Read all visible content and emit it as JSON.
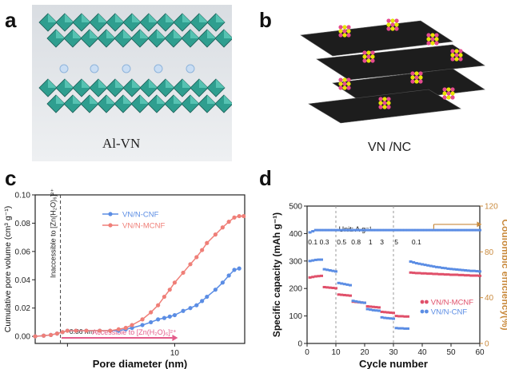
{
  "panels": {
    "a": {
      "letter": "a",
      "caption": "Al-VN"
    },
    "b": {
      "letter": "b",
      "caption": "VN /NC"
    },
    "c": {
      "letter": "c"
    },
    "d": {
      "letter": "d"
    }
  },
  "colors": {
    "mcnf": "#ef7f78",
    "cnf": "#5b8de4",
    "mcnf_d": "#e0506a",
    "cnf_d": "#5b8de4",
    "ce_axis": "#c98a3d",
    "arrow_pink": "#e35b8a"
  },
  "chart_data": [
    {
      "type": "line",
      "panel": "c",
      "xlabel": "Pore diameter (nm)",
      "ylabel": "Cumulative pore volume (cm³ g⁻¹)",
      "xscale": "log",
      "xlim": [
        0.5,
        45
      ],
      "ylim": [
        -0.005,
        0.1
      ],
      "yticks": [
        "0.00",
        "0.02",
        "0.04",
        "0.06",
        "0.08",
        "0.10"
      ],
      "xtick_label": "10",
      "xtick_marker": "1",
      "annotations": {
        "inaccessible": "Inaccessible to [Zn(H₂O)₆]²⁺",
        "size": "~ 0.86 nm",
        "accessible": "Accessible to [Zn(H₂O)₆]²⁺"
      },
      "series": [
        {
          "name": "VN/N-CNF",
          "x": [
            0.5,
            0.6,
            0.7,
            0.8,
            0.9,
            1.0,
            1.2,
            1.5,
            2,
            2.5,
            3,
            3.5,
            4,
            5,
            6,
            7,
            8,
            9,
            10,
            12,
            14,
            16,
            18,
            20,
            24,
            28,
            32,
            36,
            40
          ],
          "y": [
            0.0,
            0.0005,
            0.001,
            0.002,
            0.003,
            0.004,
            0.004,
            0.004,
            0.004,
            0.004,
            0.004,
            0.005,
            0.006,
            0.008,
            0.01,
            0.012,
            0.013,
            0.014,
            0.015,
            0.018,
            0.02,
            0.022,
            0.025,
            0.028,
            0.033,
            0.038,
            0.043,
            0.047,
            0.048
          ]
        },
        {
          "name": "VN/N-MCNF",
          "x": [
            0.5,
            0.6,
            0.7,
            0.8,
            0.9,
            1.0,
            1.2,
            1.5,
            2,
            2.5,
            3,
            3.5,
            4,
            5,
            6,
            7,
            8,
            9,
            10,
            12,
            14,
            16,
            18,
            20,
            24,
            28,
            32,
            36,
            40,
            44
          ],
          "y": [
            0.0,
            0.0005,
            0.001,
            0.002,
            0.003,
            0.004,
            0.004,
            0.004,
            0.004,
            0.004,
            0.005,
            0.006,
            0.008,
            0.012,
            0.017,
            0.022,
            0.028,
            0.033,
            0.038,
            0.045,
            0.051,
            0.056,
            0.061,
            0.066,
            0.072,
            0.077,
            0.081,
            0.084,
            0.085,
            0.085
          ]
        }
      ]
    },
    {
      "type": "scatter",
      "panel": "d",
      "xlabel": "Cycle number",
      "ylabel": "Specific capacity (mAh g⁻¹)",
      "y2label": "Coulombic efficiency(%)",
      "xlim": [
        0,
        60
      ],
      "ylim": [
        0,
        500
      ],
      "y2lim": [
        0,
        120
      ],
      "xticks": [
        "0",
        "10",
        "20",
        "30",
        "40",
        "50",
        "60"
      ],
      "yticks": [
        "0",
        "100",
        "200",
        "300",
        "400",
        "500"
      ],
      "y2ticks": [
        "0",
        "40",
        "80",
        "120"
      ],
      "unit_label": "Unit: A g⁻¹",
      "rate_labels": [
        "0.1",
        "0.3",
        "0.5",
        "0.8",
        "1",
        "3",
        "5",
        "0.1"
      ],
      "rate_label_cycles": [
        2,
        6,
        12,
        17,
        22,
        26,
        31,
        38
      ],
      "series": [
        {
          "name": "VN/N-MCNF",
          "x": [
            1,
            2,
            3,
            4,
            5,
            6,
            7,
            8,
            9,
            10,
            11,
            12,
            13,
            14,
            15,
            16,
            17,
            18,
            19,
            20,
            21,
            22,
            23,
            24,
            25,
            26,
            27,
            28,
            29,
            30,
            31,
            32,
            33,
            34,
            35,
            36,
            37,
            38,
            39,
            40,
            41,
            42,
            43,
            44,
            45,
            46,
            47,
            48,
            49,
            50,
            51,
            52,
            53,
            54,
            55,
            56,
            57,
            58,
            59,
            60
          ],
          "y": [
            240,
            242,
            244,
            245,
            246,
            205,
            204,
            203,
            202,
            201,
            178,
            177,
            176,
            175,
            174,
            152,
            151,
            150,
            149,
            148,
            135,
            134,
            133,
            132,
            131,
            115,
            114,
            113,
            112,
            111,
            100,
            99,
            99,
            98,
            98,
            258,
            257,
            256,
            256,
            255,
            255,
            254,
            254,
            253,
            253,
            252,
            252,
            251,
            251,
            250,
            250,
            250,
            249,
            249,
            248,
            248,
            247,
            247,
            247,
            246
          ]
        },
        {
          "name": "VN/N-CNF",
          "x": [
            1,
            2,
            3,
            4,
            5,
            6,
            7,
            8,
            9,
            10,
            11,
            12,
            13,
            14,
            15,
            16,
            17,
            18,
            19,
            20,
            21,
            22,
            23,
            24,
            25,
            26,
            27,
            28,
            29,
            30,
            31,
            32,
            33,
            34,
            35,
            36,
            37,
            38,
            39,
            40,
            41,
            42,
            43,
            44,
            45,
            46,
            47,
            48,
            49,
            50,
            51,
            52,
            53,
            54,
            55,
            56,
            57,
            58,
            59,
            60
          ],
          "y": [
            300,
            302,
            304,
            305,
            305,
            270,
            268,
            266,
            264,
            262,
            220,
            218,
            216,
            214,
            212,
            155,
            153,
            151,
            149,
            148,
            125,
            123,
            121,
            120,
            119,
            95,
            93,
            92,
            91,
            90,
            56,
            55,
            55,
            54,
            54,
            298,
            295,
            292,
            290,
            288,
            286,
            284,
            282,
            280,
            278,
            277,
            275,
            274,
            272,
            271,
            270,
            269,
            268,
            267,
            266,
            265,
            264,
            264,
            263,
            262
          ]
        },
        {
          "name": "CE",
          "axis": "right",
          "x": [
            1,
            2,
            3,
            4,
            5,
            6,
            7,
            8,
            9,
            10,
            11,
            12,
            13,
            14,
            15,
            16,
            17,
            18,
            19,
            20,
            21,
            22,
            23,
            24,
            25,
            26,
            27,
            28,
            29,
            30,
            31,
            32,
            33,
            34,
            35,
            36,
            37,
            38,
            39,
            40,
            41,
            42,
            43,
            44,
            45,
            46,
            47,
            48,
            49,
            50,
            51,
            52,
            53,
            54,
            55,
            56,
            57,
            58,
            59,
            60
          ],
          "y": [
            97,
            98,
            99,
            99,
            99,
            99,
            99,
            99,
            99,
            99,
            99,
            99,
            99,
            99,
            99,
            99,
            99,
            99,
            99,
            99,
            99,
            99,
            99,
            99,
            99,
            99,
            99,
            99,
            99,
            99,
            99,
            99,
            99,
            99,
            99,
            99,
            99,
            99,
            99,
            99,
            99,
            99,
            99,
            99,
            99,
            99,
            99,
            99,
            99,
            99,
            99,
            99,
            99,
            99,
            99,
            99,
            99,
            99,
            99,
            99
          ]
        }
      ]
    }
  ]
}
